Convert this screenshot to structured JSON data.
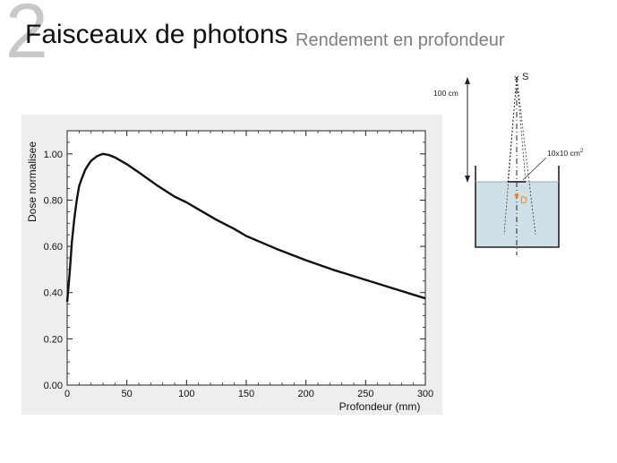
{
  "slide": {
    "number": "2",
    "title": "Faisceaux de photons",
    "subtitle": "Rendement en profondeur"
  },
  "chart_data": {
    "type": "line",
    "xlabel": "Profondeur (mm)",
    "ylabel": "Dose normalisee",
    "xlim": [
      0,
      300
    ],
    "ylim": [
      0,
      1.1
    ],
    "x_ticks": [
      "0",
      "50",
      "100",
      "150",
      "200",
      "250",
      "300"
    ],
    "y_ticks": [
      "0.00",
      "0.20",
      "0.40",
      "0.60",
      "0.80",
      "1.00"
    ],
    "grid": false,
    "series": [
      {
        "x": [
          0,
          2,
          4,
          6,
          8,
          10,
          12,
          15,
          18,
          20,
          25,
          30,
          35,
          40,
          50,
          60,
          75,
          90,
          100,
          110,
          125,
          140,
          150,
          175,
          200,
          225,
          250,
          275,
          300
        ],
        "y": [
          0.36,
          0.48,
          0.62,
          0.72,
          0.8,
          0.86,
          0.89,
          0.93,
          0.955,
          0.97,
          0.99,
          1.0,
          0.995,
          0.985,
          0.955,
          0.92,
          0.865,
          0.815,
          0.79,
          0.76,
          0.715,
          0.675,
          0.645,
          0.59,
          0.54,
          0.495,
          0.455,
          0.415,
          0.375
        ]
      }
    ]
  },
  "diagram": {
    "distance_label": "100 cm",
    "source_label": "S",
    "field_size_label": "10x10 cm",
    "field_size_unit_exponent": "2",
    "point_label": "D",
    "point_color": "#e8862a",
    "water_color": "#cfe0e6"
  }
}
